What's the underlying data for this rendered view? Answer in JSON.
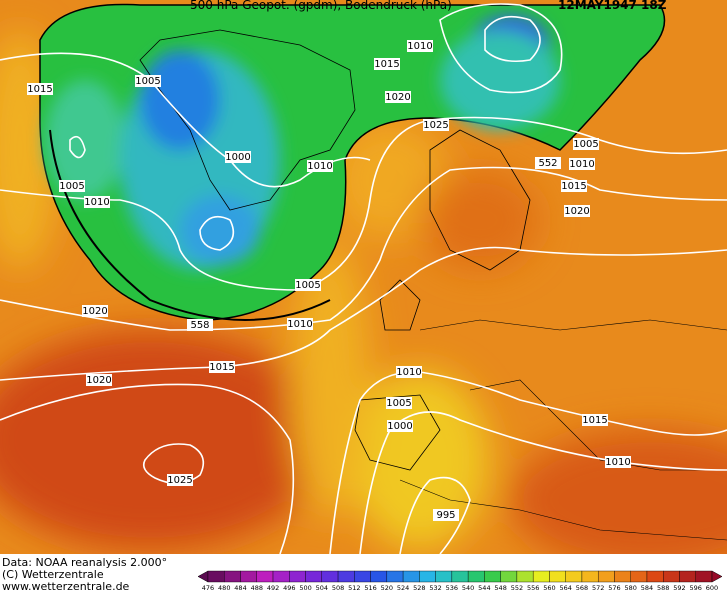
{
  "header": {
    "title": "500 hPa Geopot. (gpdm), Bodendruck (hPa)",
    "date": "12MAY1947 18Z"
  },
  "isobar_labels": [
    1015,
    1005,
    1010,
    1015,
    1020,
    1025,
    1005,
    552,
    1010,
    1015,
    1020,
    1000,
    1005,
    1010,
    1010,
    1005,
    1020,
    558,
    1010,
    1015,
    1020,
    1010,
    1005,
    1000,
    1015,
    1010,
    1025,
    995
  ],
  "footer": {
    "source": "Data: NOAA reanalysis 2.000°",
    "copyright": "(C) Wetterzentrale",
    "url": "www.wetterzentrale.de"
  },
  "colorbar": {
    "labels": [
      476,
      480,
      484,
      488,
      492,
      496,
      500,
      504,
      508,
      512,
      516,
      520,
      524,
      528,
      532,
      536,
      540,
      544,
      548,
      552,
      556,
      560,
      564,
      568,
      572,
      576,
      580,
      584,
      588,
      592,
      596,
      600
    ]
  }
}
